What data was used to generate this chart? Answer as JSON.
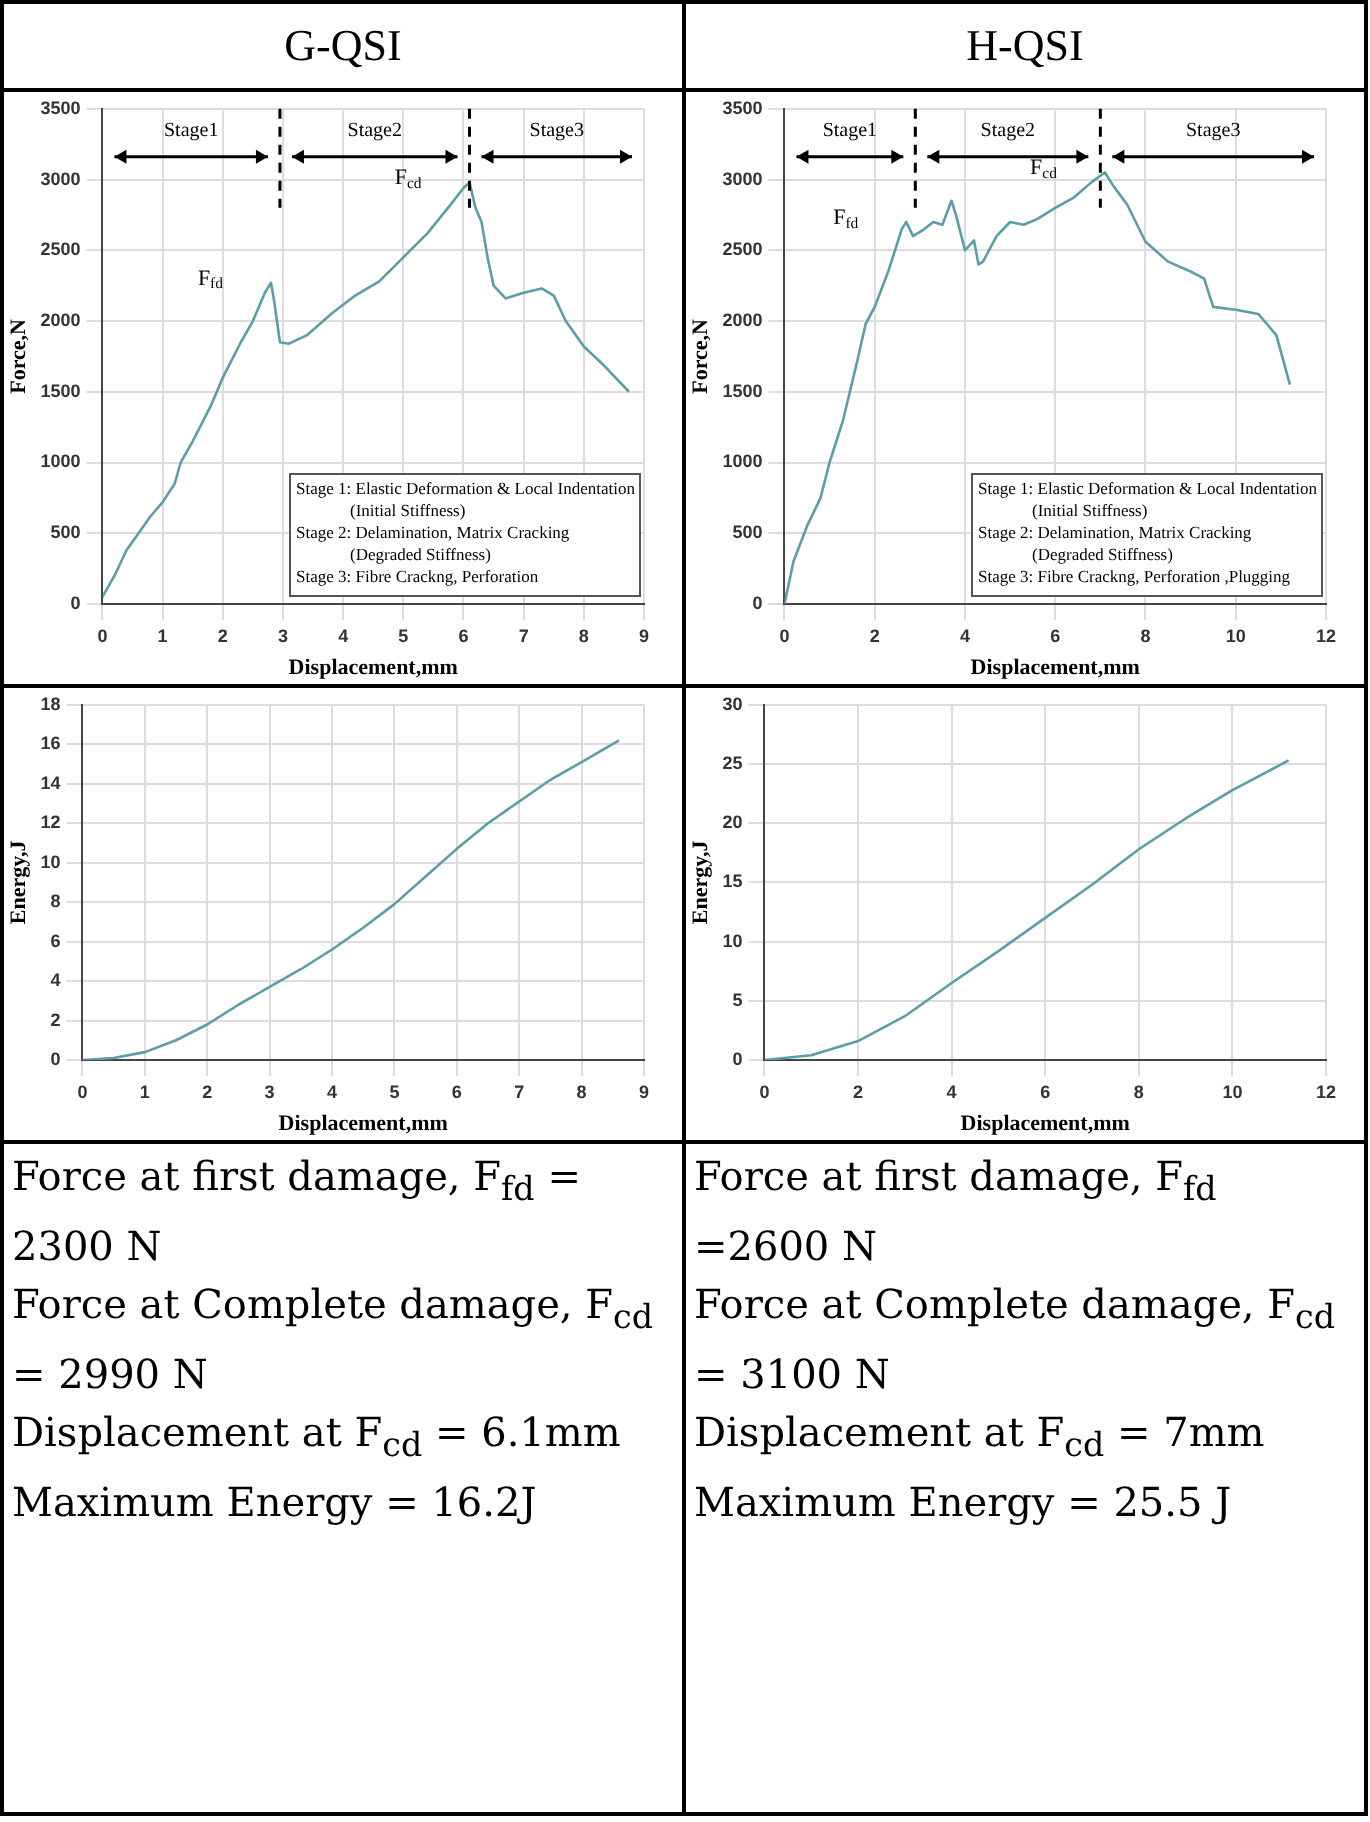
{
  "chart_data": [
    {
      "type": "line",
      "title": "G-QSI",
      "xlabel": "Displacement,mm",
      "ylabel": "Force,N",
      "xlim": [
        0,
        9
      ],
      "xticks": [
        0,
        1,
        2,
        3,
        4,
        5,
        6,
        7,
        8,
        9
      ],
      "ylim": [
        0,
        3500
      ],
      "yticks": [
        0,
        500,
        1000,
        1500,
        2000,
        2500,
        3000,
        3500
      ],
      "grid": true,
      "x": [
        0,
        0.2,
        0.4,
        0.6,
        0.8,
        1.0,
        1.2,
        1.3,
        1.5,
        1.8,
        2.0,
        2.3,
        2.5,
        2.7,
        2.8,
        2.85,
        2.95,
        3.1,
        3.4,
        3.8,
        4.2,
        4.6,
        5.0,
        5.4,
        5.8,
        6.0,
        6.1,
        6.2,
        6.3,
        6.4,
        6.5,
        6.7,
        7.0,
        7.3,
        7.5,
        7.7,
        8.0,
        8.3,
        8.75
      ],
      "series": [
        {
          "color": "#5a9ea8",
          "values": [
            50,
            200,
            380,
            500,
            620,
            720,
            850,
            1000,
            1150,
            1400,
            1600,
            1850,
            2000,
            2200,
            2270,
            2150,
            1850,
            1840,
            1900,
            2050,
            2180,
            2280,
            2450,
            2620,
            2830,
            2940,
            2980,
            2800,
            2700,
            2450,
            2250,
            2160,
            2200,
            2230,
            2180,
            2000,
            1820,
            1700,
            1500
          ]
        }
      ],
      "ref_lines": [
        {
          "axis": "x",
          "value": 2.95,
          "line_style": "dashed",
          "color": "#000000"
        },
        {
          "axis": "x",
          "value": 6.1,
          "line_style": "dashed",
          "color": "#000000"
        }
      ],
      "annotations": [
        "Stage1",
        "Stage2",
        "Stage3",
        {
          "text": "F$_{fd}$",
          "x": 2.8,
          "y": 2270
        },
        {
          "text": "F$_{cd}$",
          "x": 6.1,
          "y": 2980
        },
        "Stage 1: Elastic Deformation & Local Indentation",
        "(Initial Stiffness)",
        "Stage 2: Delamination, Matrix Cracking",
        "(Degraded Stiffness)",
        "Stage 3: Fibre Crackng, Perforation"
      ]
    },
    {
      "type": "line",
      "title": "H-QSI",
      "xlabel": "Displacement,mm",
      "ylabel": "Force,N",
      "xlim": [
        0,
        12
      ],
      "xticks": [
        0,
        2,
        4,
        6,
        8,
        10,
        12
      ],
      "ylim": [
        0,
        3500
      ],
      "yticks": [
        0,
        500,
        1000,
        1500,
        2000,
        2500,
        3000,
        3500
      ],
      "grid": true,
      "x": [
        0,
        0.2,
        0.5,
        0.8,
        1.0,
        1.3,
        1.6,
        1.8,
        2.0,
        2.3,
        2.6,
        2.7,
        2.85,
        3.1,
        3.3,
        3.5,
        3.7,
        3.8,
        4.0,
        4.2,
        4.3,
        4.4,
        4.7,
        5.0,
        5.3,
        5.6,
        6.0,
        6.4,
        6.8,
        7.1,
        7.3,
        7.6,
        8.0,
        8.5,
        9.0,
        9.3,
        9.5,
        10.0,
        10.5,
        10.9,
        11.2
      ],
      "series": [
        {
          "color": "#5a9ea8",
          "values": [
            0,
            300,
            550,
            750,
            1000,
            1300,
            1700,
            1980,
            2100,
            2350,
            2650,
            2700,
            2600,
            2650,
            2700,
            2680,
            2850,
            2750,
            2500,
            2570,
            2400,
            2420,
            2600,
            2700,
            2680,
            2720,
            2800,
            2870,
            2980,
            3050,
            2950,
            2820,
            2560,
            2420,
            2350,
            2300,
            2100,
            2080,
            2050,
            1900,
            1550
          ]
        }
      ],
      "ref_lines": [
        {
          "axis": "x",
          "value": 2.9,
          "line_style": "dashed",
          "color": "#000000"
        },
        {
          "axis": "x",
          "value": 7.0,
          "line_style": "dashed",
          "color": "#000000"
        }
      ],
      "annotations": [
        "Stage1",
        "Stage2",
        "Stage3",
        {
          "text": "F$_{fd}$",
          "x": 2.7,
          "y": 2700
        },
        {
          "text": "F$_{cd}$",
          "x": 7.1,
          "y": 3050
        },
        "Stage 1: Elastic Deformation & Local Indentation",
        "(Initial Stiffness)",
        "Stage 2: Delamination, Matrix Cracking",
        "(Degraded Stiffness)",
        "Stage 3: Fibre Crackng, Perforation ,Plugging"
      ]
    },
    {
      "type": "line",
      "xlabel": "Displacement,mm",
      "ylabel": "Energy,J",
      "xlim": [
        0,
        9
      ],
      "xticks": [
        0,
        1,
        2,
        3,
        4,
        5,
        6,
        7,
        8,
        9
      ],
      "ylim": [
        0,
        18
      ],
      "yticks": [
        0,
        2,
        4,
        6,
        8,
        10,
        12,
        14,
        16,
        18
      ],
      "grid": true,
      "x": [
        0,
        0.5,
        1,
        1.5,
        2,
        2.5,
        3,
        3.5,
        4,
        4.5,
        5,
        5.5,
        6,
        6.5,
        7,
        7.5,
        8,
        8.6
      ],
      "series": [
        {
          "color": "#5a9ea8",
          "values": [
            0,
            0.1,
            0.4,
            1,
            1.8,
            2.8,
            3.7,
            4.6,
            5.6,
            6.7,
            7.9,
            9.3,
            10.7,
            12,
            13.1,
            14.2,
            15.1,
            16.2
          ]
        }
      ]
    },
    {
      "type": "line",
      "xlabel": "Displacement,mm",
      "ylabel": "Energy,J",
      "xlim": [
        0,
        12
      ],
      "xticks": [
        0,
        2,
        4,
        6,
        8,
        10,
        12
      ],
      "ylim": [
        0,
        30
      ],
      "yticks": [
        0,
        5,
        10,
        15,
        20,
        25,
        30
      ],
      "grid": true,
      "x": [
        0,
        1,
        2,
        3,
        4,
        5,
        6,
        7,
        8,
        9,
        10,
        11.2
      ],
      "series": [
        {
          "color": "#5a9ea8",
          "values": [
            0,
            0.4,
            1.6,
            3.7,
            6.5,
            9.2,
            12,
            14.8,
            17.8,
            20.4,
            22.8,
            25.3
          ]
        }
      ]
    },
    {
      "type": "other",
      "annotations": [
        "Force at first damage, F$_{fd}$ = 2300 N",
        "Force at Complete damage, F$_{cd}$ = 2990 N",
        "Displacement at F$_{cd}$ = 6.1mm",
        "Maximum Energy = 16.2J"
      ]
    },
    {
      "type": "other",
      "annotations": [
        "Force at first damage, F$_{fd}$ =2600 N",
        "Force at Complete damage, F$_{cd}$ = 3100 N",
        "Displacement at F$_{cd}$ = 7mm",
        "Maximum Energy = 25.5 J"
      ]
    }
  ]
}
